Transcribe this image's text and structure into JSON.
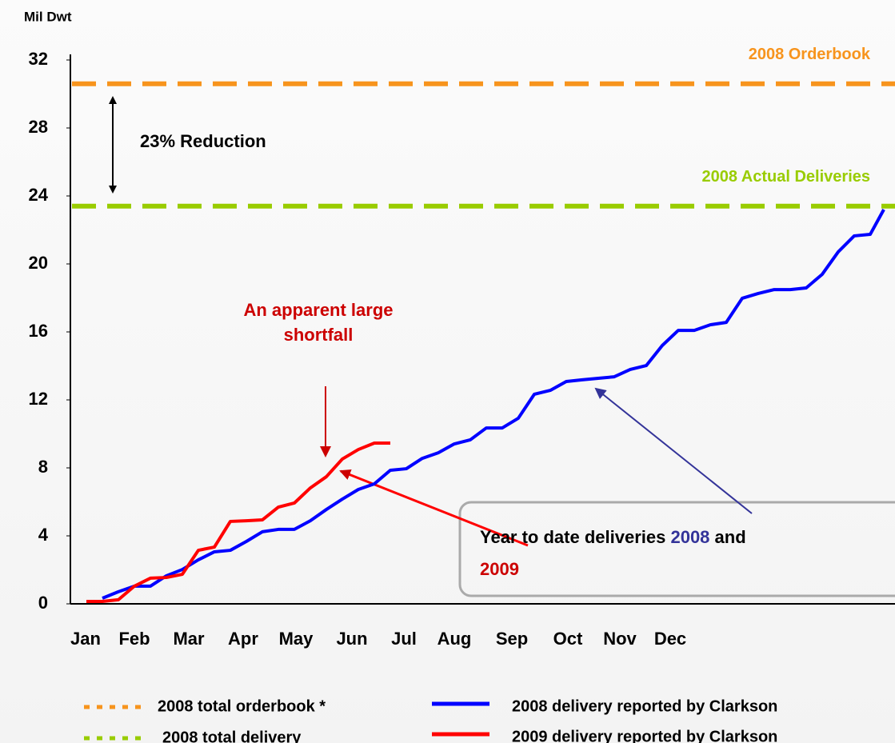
{
  "chart_data": {
    "type": "line",
    "title": "Mil Dwt",
    "xlim": [
      -1,
      50.55
    ],
    "xticks": [
      {
        "value": -0.05,
        "label": "Jan"
      },
      {
        "value": 3,
        "label": "Feb"
      },
      {
        "value": 6.4,
        "label": "Mar"
      },
      {
        "value": 9.8,
        "label": "Apr"
      },
      {
        "value": 13.1,
        "label": "May"
      },
      {
        "value": 16.6,
        "label": "Jun"
      },
      {
        "value": 19.85,
        "label": "Jul"
      },
      {
        "value": 23,
        "label": "Aug"
      },
      {
        "value": 26.6,
        "label": "Sep"
      },
      {
        "value": 30.1,
        "label": "Oct"
      },
      {
        "value": 33.35,
        "label": "Nov"
      },
      {
        "value": 36.5,
        "label": "Dec"
      }
    ],
    "ylim": [
      0,
      32
    ],
    "yticks": [
      0,
      4,
      8,
      12,
      16,
      20,
      24,
      28,
      32
    ],
    "reference_lines": [
      {
        "name": "2008 total orderbook *",
        "label": "2008 Orderbook",
        "value": 30.6,
        "color": "#f7941d"
      },
      {
        "name": "2008 total delivery",
        "label": "2008 Actual Deliveries",
        "value": 23.4,
        "color": "#99cc00"
      }
    ],
    "series": [
      {
        "name": "2008 delivery reported by Clarkson",
        "color": "#0000ff",
        "x": [
          1,
          2,
          3,
          4,
          5,
          6,
          7,
          8,
          9,
          10,
          11,
          12,
          13,
          14,
          15,
          16,
          17,
          18,
          19,
          20,
          21,
          22,
          23,
          24,
          25,
          26,
          27,
          28,
          29,
          30,
          31,
          32,
          33,
          34,
          35,
          36,
          37,
          38,
          39,
          40,
          41,
          42,
          43,
          44,
          45,
          46,
          47,
          48,
          49,
          49.85
        ],
        "values": [
          0.33,
          0.71,
          1.04,
          1.04,
          1.65,
          2.02,
          2.59,
          3.06,
          3.15,
          3.67,
          4.24,
          4.38,
          4.38,
          4.89,
          5.55,
          6.16,
          6.73,
          7.06,
          7.86,
          7.95,
          8.56,
          8.89,
          9.41,
          9.65,
          10.35,
          10.35,
          10.92,
          12.33,
          12.56,
          13.08,
          13.18,
          13.27,
          13.36,
          13.79,
          14.02,
          15.2,
          16.09,
          16.09,
          16.42,
          16.56,
          17.98,
          18.26,
          18.49,
          18.49,
          18.59,
          19.39,
          20.71,
          21.65,
          21.74,
          23.2
        ]
      },
      {
        "name": "2009 delivery reported by Clarkson",
        "color": "#ff0000",
        "x": [
          0,
          1,
          2,
          3,
          4,
          5,
          6,
          7,
          8,
          9,
          10,
          11,
          12,
          13,
          14,
          15,
          16,
          17,
          18,
          19
        ],
        "values": [
          0.14,
          0.14,
          0.24,
          1.04,
          1.51,
          1.55,
          1.74,
          3.15,
          3.34,
          4.85,
          4.89,
          4.94,
          5.69,
          5.93,
          6.82,
          7.48,
          8.52,
          9.08,
          9.46,
          9.46
        ]
      }
    ],
    "annotations": {
      "reduction": "23% Reduction",
      "shortfall": [
        "An apparent large",
        "shortfall"
      ],
      "box": [
        "Year to date deliveries ",
        "2008",
        " and",
        "2009"
      ]
    }
  }
}
